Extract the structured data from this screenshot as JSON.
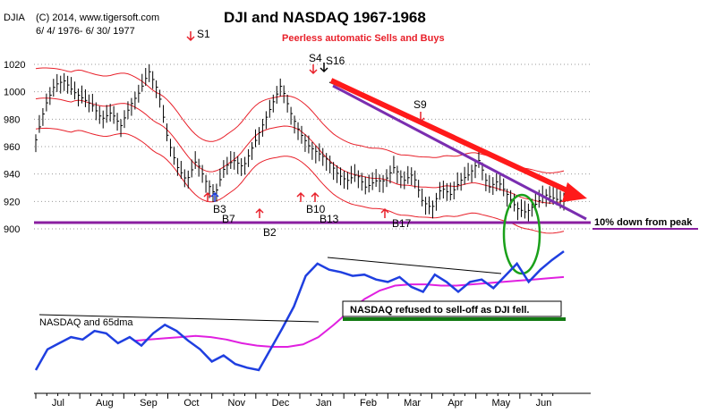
{
  "header": {
    "symbol": "DJIA",
    "copyright": "(C) 2014, www.tigersoft.com",
    "date_range": "6/ 4/ 1976- 6/ 30/ 1977",
    "title": "DJI and NASDAQ 1967-1968",
    "subtitle": "Peerless automatic Sells and Buys"
  },
  "chart_data": {
    "type": "line",
    "title": "DJI and NASDAQ 1967-1968",
    "subtitle": "Peerless automatic Sells and Buys",
    "y_ticks": [
      "1020",
      "1000",
      "980",
      "960",
      "940",
      "920",
      "900"
    ],
    "ylim": [
      895,
      1025
    ],
    "x_month_labels": [
      "Jul",
      "Aug",
      "Sep",
      "Oct",
      "Nov",
      "Dec",
      "Jan",
      "Feb",
      "Mar",
      "Apr",
      "May",
      "Jun"
    ],
    "dji_close": [
      965,
      990,
      1005,
      1008,
      1000,
      995,
      990,
      980,
      985,
      975,
      990,
      1000,
      1015,
      1000,
      965,
      945,
      935,
      950,
      935,
      925,
      945,
      950,
      945,
      960,
      975,
      990,
      1005,
      985,
      970,
      960,
      955,
      950,
      940,
      935,
      940,
      930,
      935,
      935,
      945,
      935,
      940,
      920,
      915,
      930,
      925,
      935,
      940,
      950,
      930,
      935,
      925,
      915,
      912,
      918,
      925,
      922,
      920
    ],
    "nasdaq_relative": [
      0.08,
      0.25,
      0.3,
      0.35,
      0.33,
      0.4,
      0.38,
      0.3,
      0.35,
      0.28,
      0.38,
      0.45,
      0.4,
      0.32,
      0.25,
      0.15,
      0.2,
      0.13,
      0.1,
      0.08,
      0.25,
      0.42,
      0.6,
      0.85,
      0.95,
      0.9,
      0.88,
      0.85,
      0.86,
      0.82,
      0.8,
      0.84,
      0.76,
      0.72,
      0.86,
      0.8,
      0.72,
      0.8,
      0.82,
      0.75,
      0.85,
      0.95,
      0.8,
      0.9,
      0.98,
      1.05
    ],
    "nasdaq_65dma_relative": [
      0.32,
      0.33,
      0.34,
      0.35,
      0.36,
      0.35,
      0.33,
      0.3,
      0.28,
      0.27,
      0.27,
      0.29,
      0.35,
      0.45,
      0.56,
      0.66,
      0.73,
      0.77,
      0.78,
      0.78,
      0.77,
      0.77,
      0.78,
      0.79,
      0.8,
      0.81,
      0.82,
      0.83,
      0.84
    ],
    "horizontal_line_value": 904,
    "signals": {
      "sells": [
        "S1",
        "S4",
        "S16",
        "S9"
      ],
      "buys": [
        "B3",
        "B7",
        "B2",
        "B10",
        "B13",
        "B17"
      ]
    },
    "annotations": [
      "10% down from peak",
      "NASDAQ refused to sell-off as DJI fell."
    ],
    "nasdaq_label": "NASDAQ and 65dma",
    "colors": {
      "dji_bars": "#000000",
      "bands": "#e8202a",
      "nasdaq": "#1f3fe0",
      "dma": "#e020e0",
      "support_line": "#8a1ea0",
      "trend_arrow": "#ff1a1a",
      "trend_line": "#7a2eb0",
      "circle": "#1aa01a",
      "green_bar": "#127a12",
      "signal_arrows": "#e8202a"
    }
  }
}
